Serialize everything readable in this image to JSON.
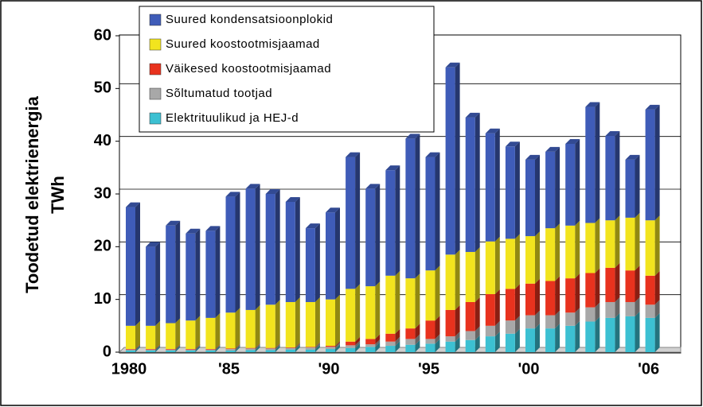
{
  "chart_data": {
    "type": "bar",
    "stacked": true,
    "ylabel": [
      "Toodetud elektrienergia",
      "TWh"
    ],
    "categories": [
      "1980",
      null,
      null,
      null,
      null,
      "'85",
      null,
      null,
      null,
      null,
      "'90",
      null,
      null,
      null,
      null,
      "'95",
      null,
      null,
      null,
      null,
      "'00",
      null,
      null,
      null,
      null,
      null,
      "'06"
    ],
    "series": [
      {
        "name": "Elektrituulikud ja HEJ-d",
        "color": "#3cc0d2",
        "values": [
          0.3,
          0.3,
          0.3,
          0.3,
          0.3,
          0.3,
          0.4,
          0.4,
          0.5,
          0.5,
          0.6,
          0.8,
          1,
          1.2,
          1.4,
          1.6,
          2,
          2.3,
          3,
          3.5,
          4.5,
          4.5,
          5,
          5.8,
          6.5,
          6.8,
          6.5
        ]
      },
      {
        "name": "Sõltumatud tootjad",
        "color": "#a8a8a8",
        "values": [
          0.2,
          0.2,
          0.2,
          0.2,
          0.2,
          0.3,
          0.3,
          0.3,
          0.3,
          0.4,
          0.4,
          0.5,
          0.5,
          0.8,
          1.1,
          0.9,
          1,
          1.7,
          2,
          2.5,
          2.5,
          2.5,
          2.5,
          2.7,
          3,
          2.7,
          2.5
        ]
      },
      {
        "name": "Väikesed koostootmisjaamad",
        "color": "#e8321e",
        "values": [
          0.1,
          0.1,
          0.1,
          0.1,
          0.1,
          0.1,
          0.1,
          0.1,
          0.1,
          0.1,
          0.2,
          0.7,
          1,
          1.5,
          2,
          3.5,
          5,
          5.5,
          6,
          6,
          6,
          6.5,
          6.5,
          6.5,
          6.5,
          6,
          5.5
        ]
      },
      {
        "name": "Suured koostootmisjaamad",
        "color": "#f2e41e",
        "values": [
          4.4,
          4.4,
          4.9,
          5.4,
          5.9,
          6.8,
          7.2,
          8.2,
          8.6,
          8.5,
          8.8,
          10,
          10,
          11,
          9.5,
          9.5,
          10.5,
          9.5,
          10,
          9.5,
          9,
          10,
          10,
          9.5,
          9,
          10,
          10.5
        ]
      },
      {
        "name": "Suured kondensatsioonplokid",
        "color": "#3f5cb8",
        "values": [
          22.5,
          15,
          18.5,
          16.5,
          16.5,
          22,
          23,
          21,
          19,
          14,
          16.5,
          25,
          18.5,
          20,
          26.5,
          21.5,
          35.5,
          25.5,
          20.5,
          17.5,
          14.5,
          14.5,
          15.5,
          22,
          16,
          11,
          21
        ]
      }
    ],
    "ylim": [
      0,
      60
    ],
    "yticks": [
      0,
      10,
      20,
      30,
      40,
      50,
      60
    ],
    "grid": true
  }
}
